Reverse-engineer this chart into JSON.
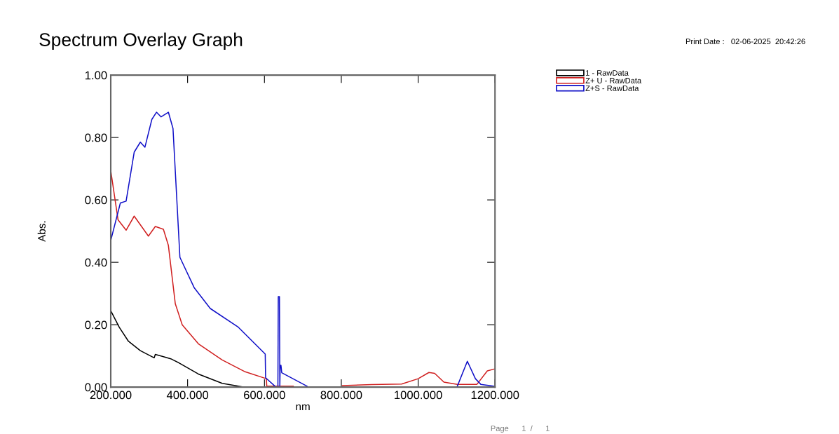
{
  "chart_data": {
    "type": "line",
    "title": "Spectrum Overlay Graph",
    "xlabel": "nm",
    "ylabel": "Abs.",
    "annotations": [
      "Print Date :   02-06-2025  20:42:26",
      "Page      1  /      1"
    ],
    "xlim": [
      200,
      1200
    ],
    "ylim": [
      0,
      1
    ],
    "xticks": [
      {
        "value": 200,
        "label": "200.000"
      },
      {
        "value": 400,
        "label": "400.000"
      },
      {
        "value": 600,
        "label": "600.000"
      },
      {
        "value": 800,
        "label": "800.000"
      },
      {
        "value": 1000,
        "label": "1000.000"
      },
      {
        "value": 1200,
        "label": "1200.000"
      }
    ],
    "yticks": [
      {
        "value": 0,
        "label": "0.00"
      },
      {
        "value": 0.2,
        "label": "0.20"
      },
      {
        "value": 0.4,
        "label": "0.40"
      },
      {
        "value": 0.6,
        "label": "0.60"
      },
      {
        "value": 0.8,
        "label": "0.80"
      },
      {
        "value": 1,
        "label": "1.00"
      }
    ],
    "grid": false,
    "legend": "top right",
    "marker": "none",
    "line_style": "solid",
    "series": [
      {
        "name": "1 - RawData",
        "color": "#000000",
        "x": [
          200,
          222,
          246,
          277,
          313,
          316,
          356,
          380,
          428,
          490,
          541
        ],
        "values": [
          0.245,
          0.192,
          0.147,
          0.117,
          0.094,
          0.105,
          0.091,
          0.076,
          0.042,
          0.012,
          0.001
        ]
      },
      {
        "name": "Z+ U - RawData",
        "color": "#d02020",
        "x": [
          200,
          219,
          240,
          261,
          298,
          316,
          337,
          350,
          368,
          386,
          428,
          490,
          550,
          605,
          606,
          632,
          675,
          740,
          803,
          879,
          957,
          1000,
          1028,
          1043,
          1067,
          1102,
          1153,
          1180,
          1198
        ],
        "values": [
          0.694,
          0.536,
          0.503,
          0.548,
          0.484,
          0.515,
          0.506,
          0.454,
          0.267,
          0.2,
          0.139,
          0.087,
          0.049,
          0.027,
          0.003,
          0.003,
          0.003,
          null,
          0.005,
          0.008,
          0.01,
          0.027,
          0.047,
          0.044,
          0.016,
          0.009,
          0.009,
          0.052,
          0.058
        ]
      },
      {
        "name": "Z+S - RawData",
        "color": "#1010c8",
        "x": [
          200,
          225,
          240,
          261,
          277,
          289,
          307,
          319,
          331,
          350,
          362,
          380,
          417,
          459,
          532,
          602,
          603,
          630,
          635,
          636,
          639,
          640,
          641,
          643,
          645,
          711,
          900,
          1101,
          1128,
          1149,
          1163,
          1198
        ],
        "values": [
          0.47,
          0.59,
          0.596,
          0.753,
          0.785,
          0.769,
          0.858,
          0.881,
          0.866,
          0.881,
          0.829,
          0.416,
          0.319,
          0.252,
          0.192,
          0.106,
          0.03,
          0.0,
          0.0,
          0.29,
          0.29,
          0.0,
          0.07,
          0.07,
          0.046,
          0.003,
          null,
          0.0,
          0.083,
          0.027,
          0.009,
          0.003
        ]
      }
    ]
  }
}
